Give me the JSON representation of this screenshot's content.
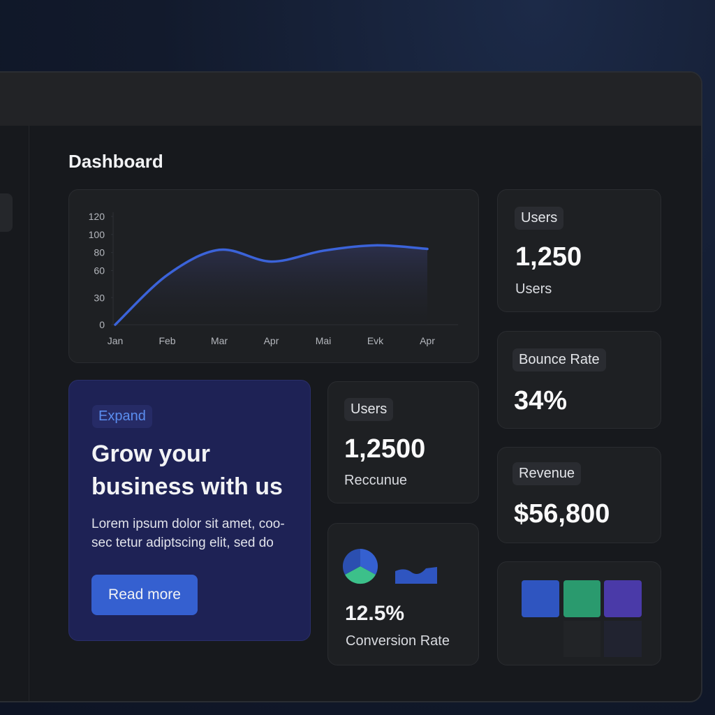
{
  "header": {
    "title": "Dashboard"
  },
  "chart_data": {
    "type": "line",
    "categories": [
      "Jan",
      "Feb",
      "Mar",
      "Apr",
      "Mai",
      "Evk",
      "Apr"
    ],
    "values": [
      0,
      55,
      83,
      70,
      82,
      88,
      84
    ],
    "color": "#3b63d9",
    "ylim": [
      0,
      120
    ],
    "yticks": [
      0,
      30,
      60,
      80,
      100,
      120
    ],
    "grid": false
  },
  "stats": [
    {
      "badge": "Users",
      "value": "1,250",
      "label": "Users"
    },
    {
      "badge": "Bounce Rate",
      "value": "34%"
    },
    {
      "badge": "Revenue",
      "value": "$56,800"
    }
  ],
  "promo": {
    "badge": "Expand",
    "title_lines": [
      "Grow your",
      "business with us"
    ],
    "body_lines": [
      "Lorem ipsum dolor sit amet, coo-",
      "sec tetur adiptscing elit, sed do"
    ],
    "button": "Read more"
  },
  "metric": {
    "badge": "Users",
    "value": "1,2500",
    "label": "Reccunue"
  },
  "conversion": {
    "value": "12.5%",
    "label": "Conversion Rate"
  }
}
